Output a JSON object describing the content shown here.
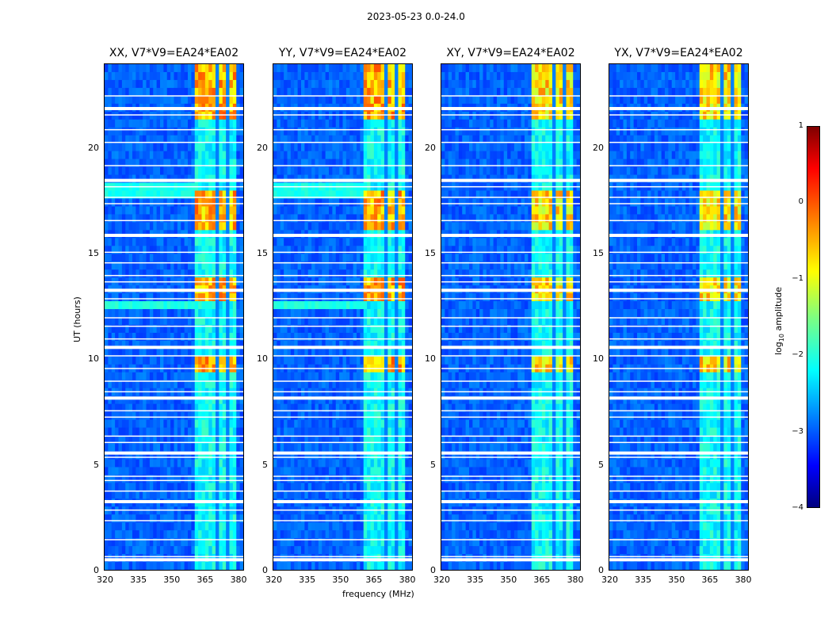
{
  "suptitle": "2023-05-23 0.0-24.0",
  "chart_data": {
    "type": "heatmap",
    "panels": [
      {
        "title": "XX, V7*V9=EA24*EA02",
        "polarization": "XX"
      },
      {
        "title": "YY, V7*V9=EA24*EA02",
        "polarization": "YY"
      },
      {
        "title": "XY, V7*V9=EA24*EA02",
        "polarization": "XY"
      },
      {
        "title": "YX, V7*V9=EA24*EA02",
        "polarization": "YX"
      }
    ],
    "xlabel": "frequency (MHz)",
    "ylabel": "UT (hours)",
    "xlim": [
      320,
      383
    ],
    "ylim": [
      0,
      24
    ],
    "xticks": [
      "320",
      "335",
      "350",
      "365",
      "380"
    ],
    "xtick_values": [
      320,
      335,
      350,
      365,
      380
    ],
    "yticks": [
      "0",
      "5",
      "10",
      "15",
      "20"
    ],
    "ytick_values": [
      0,
      5,
      10,
      15,
      20
    ],
    "colorbar": {
      "label": "log₁₀ amplitude",
      "label_base": "log",
      "label_sub": "10",
      "label_rest": " amplitude",
      "range": [
        -4,
        1
      ],
      "ticks": [
        "1",
        "0",
        "−1",
        "−2",
        "−3",
        "−4"
      ],
      "tick_values": [
        1,
        0,
        -1,
        -2,
        -3,
        -4
      ],
      "colormap": "jet"
    },
    "active_band_mhz": [
      361,
      380
    ],
    "flagged_rows_hours": [
      0.55,
      0.7,
      1.5,
      2.4,
      2.9,
      3.3,
      3.8,
      4.3,
      4.5,
      5.4,
      5.6,
      6.1,
      6.4,
      7.3,
      7.6,
      8.2,
      8.5,
      9.0,
      9.6,
      10.2,
      10.6,
      11.0,
      11.6,
      12.0,
      12.9,
      13.3,
      13.7,
      14.0,
      14.6,
      15.1,
      15.9,
      16.6,
      17.4,
      17.7,
      18.2,
      18.5,
      19.2,
      20.3,
      20.9,
      21.6,
      21.9,
      22.5
    ]
  },
  "colors": {
    "background": "#1f3fd8",
    "flag": "#ffffff"
  }
}
